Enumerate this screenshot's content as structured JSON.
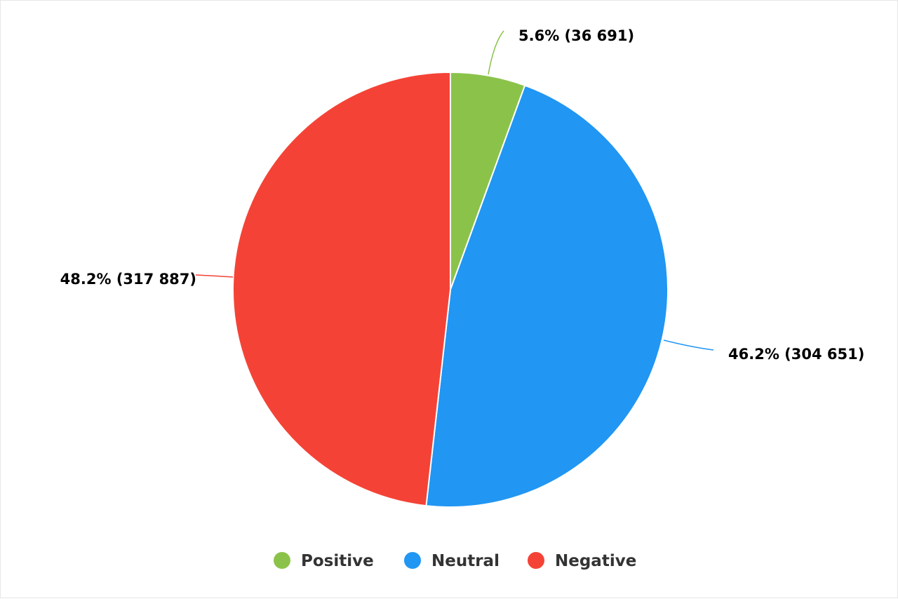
{
  "chart_data": {
    "type": "pie",
    "title": "",
    "slices": [
      {
        "name": "Positive",
        "value": 36691,
        "percent": 5.6,
        "label": "5.6% (36 691)",
        "color": "#8bc34a"
      },
      {
        "name": "Neutral",
        "value": 304651,
        "percent": 46.2,
        "label": "46.2% (304 651)",
        "color": "#2196f3"
      },
      {
        "name": "Negative",
        "value": 317887,
        "percent": 48.2,
        "label": "48.2% (317 887)",
        "color": "#f44336"
      }
    ],
    "start_angle": "top",
    "direction": "clockwise",
    "legend": {
      "position": "bottom-center",
      "items": [
        "Positive",
        "Neutral",
        "Negative"
      ]
    }
  }
}
